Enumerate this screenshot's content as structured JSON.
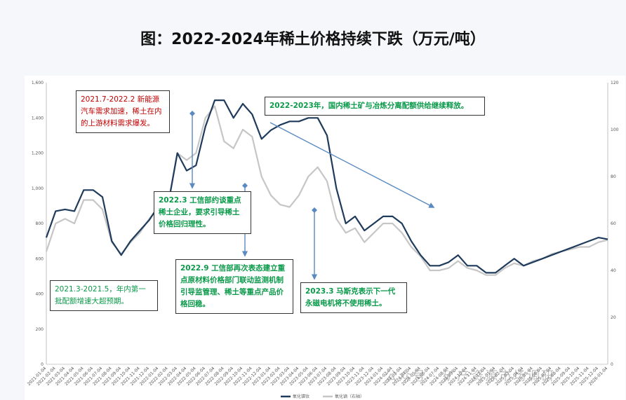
{
  "title": "图：2022-2024年稀土价格持续下跌（万元/吨）",
  "annotations": [
    {
      "id": "note-2021-7",
      "text": "2021.7-2022.2 新能源汽车需求加速，稀土在内的上游材料需求爆发。"
    },
    {
      "id": "note-2022-2023",
      "text": "2022-2023年，国内稀土矿与冶炼分离配额供给继续释放。"
    },
    {
      "id": "note-2022-3",
      "text": "2022.3 工信部约谈重点稀土企业，要求引导稀土价格回归理性。"
    },
    {
      "id": "note-2022-9",
      "text": "2022.9 工信部再次表态建立重点原材料价格部门联动监测机制 引导监管理、稀土等重点产品价格回稳。"
    },
    {
      "id": "note-2021-3",
      "text": "2021.3-2021.5，年内第一批配额增速大超预期。"
    },
    {
      "id": "note-2023-3",
      "text": "2023.3 马斯克表示下一代永磁电机将不使用稀土。"
    }
  ],
  "watermark": "公众号 · 矿产资源市场调研",
  "chart_data": {
    "type": "line",
    "title": "图：2022-2024年稀土价格持续下跌（万元/吨）",
    "y_left": {
      "range": [
        0,
        1600
      ],
      "ticks": [
        "0",
        "200",
        "400",
        "600",
        "800",
        "1,000",
        "1,200",
        "1,400",
        "1,600"
      ]
    },
    "y_right": {
      "range": [
        0,
        120
      ],
      "ticks": [
        "0",
        "20",
        "40",
        "60",
        "80",
        "100",
        "120"
      ]
    },
    "x_ticks": [
      "2021-01-04",
      "2021-02-04",
      "2021-03-04",
      "2021-04-04",
      "2021-05-04",
      "2021-06-04",
      "2021-07-04",
      "2021-08-04",
      "2021-09-04",
      "2021-10-04",
      "2021-11-04",
      "2021-12-04",
      "2022-01-04",
      "2022-02-04",
      "2022-03-04",
      "2022-04-04",
      "2022-05-04",
      "2022-06-04",
      "2022-07-04",
      "2022-08-04",
      "2022-09-04",
      "2022-10-04",
      "2022-11-04",
      "2022-12-04",
      "2023-01-04",
      "2023-02-04",
      "2023-03-04",
      "2023-04-04",
      "2023-05-04",
      "2023-06-04",
      "2023-07-04",
      "2023-08-04",
      "2023-09-04",
      "2023-10-04",
      "2023-11-04",
      "2023-12-04",
      "2024-01-04",
      "2024-02-04",
      "2024-03-04",
      "2024-04-04",
      "2024-05-04",
      "2024-06-04",
      "2024-07-04",
      "2024-08-04",
      "2024-09-04",
      "2024-10-04",
      "2024-11-04",
      "2024-12-04",
      "2025-01-04",
      "2025-02-04",
      "2025-03-04",
      "2025-04-04",
      "2025-05-04",
      "2025-06-04",
      "2025-07-04",
      "2025-08-04",
      "2025-09-04",
      "2025-10-04",
      "2025-11-04",
      "2025-12-04",
      "2026-01-04"
    ],
    "series": [
      {
        "name": "氧化镨钕",
        "axis": "left",
        "color": "#1f3b5c",
        "values": [
          720,
          870,
          880,
          870,
          990,
          990,
          950,
          700,
          620,
          700,
          760,
          820,
          900,
          900,
          1200,
          1100,
          1130,
          1350,
          1500,
          1500,
          1400,
          1480,
          1420,
          1280,
          1330,
          1360,
          1380,
          1380,
          1400,
          1400,
          1300,
          1000,
          800,
          840,
          760,
          800,
          840,
          840,
          800,
          700,
          620,
          560,
          560,
          580,
          620,
          560,
          560,
          520,
          520,
          560,
          600,
          560,
          580,
          600,
          620,
          640,
          660,
          680,
          700,
          720,
          710
        ]
      },
      {
        "name": "氧化镝（右轴）",
        "axis": "right",
        "color": "#c6c6c6",
        "values": [
          48,
          60,
          62,
          60,
          70,
          70,
          66,
          52,
          47,
          52,
          56,
          62,
          67,
          68,
          90,
          87,
          90,
          105,
          110,
          95,
          92,
          100,
          97,
          80,
          72,
          68,
          67,
          72,
          80,
          84,
          78,
          62,
          56,
          58,
          52,
          56,
          60,
          60,
          56,
          50,
          46,
          40,
          40,
          41,
          44,
          41,
          40,
          38,
          38,
          41,
          43,
          42,
          44,
          45,
          47,
          48,
          49,
          50,
          50,
          52,
          53
        ]
      }
    ],
    "legend": {
      "placement": "bottom",
      "entries": [
        "氧化镨钕",
        "氧化镝（右轴）"
      ]
    },
    "grid": false
  }
}
